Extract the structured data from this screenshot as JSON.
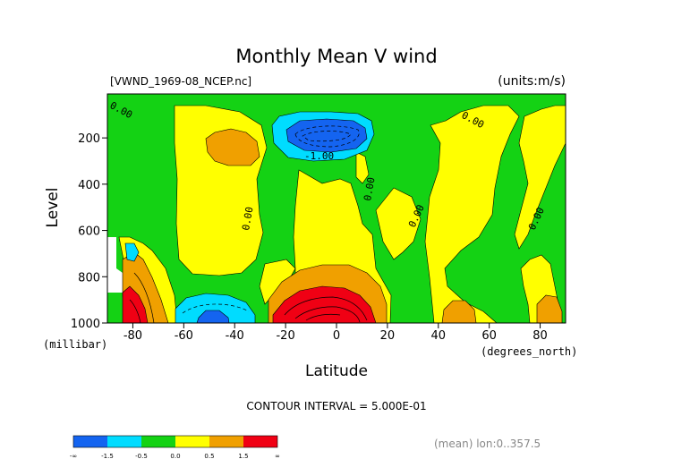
{
  "chart_data": {
    "type": "contour",
    "title": "Monthly Mean V wind",
    "subtitle": "[VWND_1969-08_NCEP.nc]",
    "units": "(units:m/s)",
    "xlabel": "Latitude",
    "x_unit": "(degrees_north)",
    "ylabel": "Level",
    "y_unit": "(millibar)",
    "xlim": [
      -90,
      90
    ],
    "ylim": [
      1000,
      10
    ],
    "x_ticks": [
      "-80",
      "-60",
      "-40",
      "-20",
      "0",
      "20",
      "40",
      "60",
      "80"
    ],
    "x_tick_values": [
      -80,
      -60,
      -40,
      -20,
      0,
      20,
      40,
      60,
      80
    ],
    "y_ticks": [
      "200",
      "400",
      "600",
      "800",
      "1000"
    ],
    "y_tick_values": [
      200,
      400,
      600,
      800,
      1000
    ],
    "contour_interval_text": "CONTOUR INTERVAL = 5.000E-01",
    "contour_labels": [
      "0.00",
      "-1.00"
    ],
    "footer_text": "(mean) lon:0..357.5",
    "colorbar": {
      "labels": [
        "-∞",
        "-1.5",
        "-0.5",
        "0.0",
        "0.5",
        "1.5",
        "∞"
      ],
      "colors": [
        "#1464f0",
        "#00dcff",
        "#14d214",
        "#ffff00",
        "#f0a000",
        "#f00014"
      ]
    }
  }
}
